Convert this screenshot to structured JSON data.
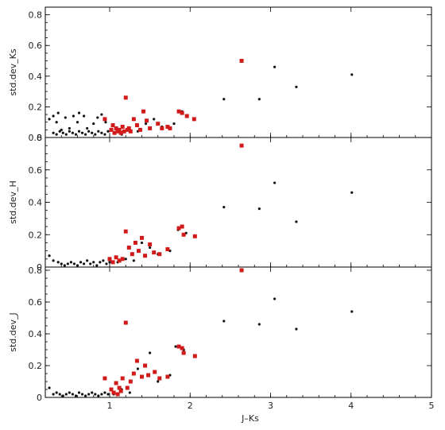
{
  "chart_data": [
    {
      "type": "scatter",
      "title": "",
      "xlabel": "J–Ks",
      "ylabel": "std.dev_Ks",
      "xlim": [
        0.2,
        5.0
      ],
      "ylim": [
        0,
        0.85
      ],
      "xticks": [
        1,
        2,
        3,
        4,
        5
      ],
      "yticks": [
        0,
        0.2,
        0.4,
        0.6,
        0.8
      ],
      "ytick_labels": [
        "0",
        "0.2",
        "0.4",
        "0.6",
        "0.8"
      ],
      "grid": false,
      "series": [
        {
          "color": "#111111",
          "marker": "dot",
          "points": [
            [
              0.25,
              0.12
            ],
            [
              0.3,
              0.14
            ],
            [
              0.34,
              0.1
            ],
            [
              0.36,
              0.16
            ],
            [
              0.4,
              0.05
            ],
            [
              0.45,
              0.13
            ],
            [
              0.5,
              0.06
            ],
            [
              0.55,
              0.14
            ],
            [
              0.6,
              0.1
            ],
            [
              0.62,
              0.16
            ],
            [
              0.68,
              0.14
            ],
            [
              0.72,
              0.06
            ],
            [
              0.8,
              0.09
            ],
            [
              0.85,
              0.13
            ],
            [
              0.9,
              0.15
            ],
            [
              0.95,
              0.1
            ],
            [
              0.3,
              0.03
            ],
            [
              0.34,
              0.02
            ],
            [
              0.38,
              0.04
            ],
            [
              0.42,
              0.03
            ],
            [
              0.46,
              0.02
            ],
            [
              0.5,
              0.04
            ],
            [
              0.54,
              0.03
            ],
            [
              0.58,
              0.02
            ],
            [
              0.62,
              0.04
            ],
            [
              0.66,
              0.03
            ],
            [
              0.7,
              0.02
            ],
            [
              0.74,
              0.04
            ],
            [
              0.78,
              0.03
            ],
            [
              0.82,
              0.02
            ],
            [
              0.86,
              0.04
            ],
            [
              0.9,
              0.03
            ],
            [
              0.94,
              0.02
            ],
            [
              0.98,
              0.04
            ],
            [
              1.05,
              0.03
            ],
            [
              1.15,
              0.02
            ],
            [
              1.25,
              0.05
            ],
            [
              1.35,
              0.04
            ],
            [
              1.45,
              0.09
            ],
            [
              1.55,
              0.12
            ],
            [
              1.65,
              0.07
            ],
            [
              1.8,
              0.09
            ],
            [
              1.9,
              0.17
            ],
            [
              2.42,
              0.25
            ],
            [
              2.86,
              0.25
            ],
            [
              3.05,
              0.46
            ],
            [
              3.32,
              0.33
            ],
            [
              4.01,
              0.41
            ]
          ]
        },
        {
          "color": "#d11a1a",
          "marker": "square",
          "points": [
            [
              0.94,
              0.12
            ],
            [
              1.02,
              0.05
            ],
            [
              1.04,
              0.08
            ],
            [
              1.06,
              0.03
            ],
            [
              1.08,
              0.06
            ],
            [
              1.1,
              0.04
            ],
            [
              1.12,
              0.05
            ],
            [
              1.14,
              0.03
            ],
            [
              1.16,
              0.07
            ],
            [
              1.18,
              0.04
            ],
            [
              1.2,
              0.26
            ],
            [
              1.22,
              0.05
            ],
            [
              1.24,
              0.06
            ],
            [
              1.26,
              0.04
            ],
            [
              1.3,
              0.12
            ],
            [
              1.34,
              0.08
            ],
            [
              1.38,
              0.05
            ],
            [
              1.42,
              0.17
            ],
            [
              1.46,
              0.11
            ],
            [
              1.5,
              0.06
            ],
            [
              1.6,
              0.09
            ],
            [
              1.65,
              0.06
            ],
            [
              1.72,
              0.07
            ],
            [
              1.75,
              0.06
            ],
            [
              1.86,
              0.17
            ],
            [
              1.9,
              0.16
            ],
            [
              1.96,
              0.14
            ],
            [
              2.05,
              0.12
            ],
            [
              2.64,
              0.5
            ]
          ]
        }
      ]
    },
    {
      "type": "scatter",
      "title": "",
      "xlabel": "J–Ks",
      "ylabel": "std.dev_H",
      "xlim": [
        0.2,
        5.0
      ],
      "ylim": [
        0,
        0.8
      ],
      "xticks": [
        1,
        2,
        3,
        4,
        5
      ],
      "yticks": [
        0,
        0.2,
        0.4,
        0.6,
        0.8
      ],
      "ytick_labels": [
        "0",
        "0.2",
        "0.4",
        "0.6",
        "0.8"
      ],
      "grid": false,
      "series": [
        {
          "color": "#111111",
          "marker": "dot",
          "points": [
            [
              0.25,
              0.07
            ],
            [
              0.3,
              0.04
            ],
            [
              0.36,
              0.03
            ],
            [
              0.4,
              0.02
            ],
            [
              0.44,
              0.01
            ],
            [
              0.48,
              0.02
            ],
            [
              0.52,
              0.03
            ],
            [
              0.56,
              0.02
            ],
            [
              0.6,
              0.01
            ],
            [
              0.64,
              0.03
            ],
            [
              0.68,
              0.02
            ],
            [
              0.72,
              0.04
            ],
            [
              0.76,
              0.02
            ],
            [
              0.8,
              0.03
            ],
            [
              0.84,
              0.01
            ],
            [
              0.88,
              0.03
            ],
            [
              0.92,
              0.04
            ],
            [
              0.96,
              0.02
            ],
            [
              1.0,
              0.03
            ],
            [
              1.1,
              0.03
            ],
            [
              1.2,
              0.05
            ],
            [
              1.3,
              0.04
            ],
            [
              1.4,
              0.15
            ],
            [
              1.5,
              0.12
            ],
            [
              1.6,
              0.08
            ],
            [
              1.75,
              0.1
            ],
            [
              1.85,
              0.23
            ],
            [
              1.95,
              0.21
            ],
            [
              2.42,
              0.37
            ],
            [
              2.86,
              0.36
            ],
            [
              3.05,
              0.52
            ],
            [
              3.32,
              0.28
            ],
            [
              4.01,
              0.46
            ]
          ]
        },
        {
          "color": "#d11a1a",
          "marker": "square",
          "points": [
            [
              1.0,
              0.05
            ],
            [
              1.04,
              0.03
            ],
            [
              1.08,
              0.06
            ],
            [
              1.12,
              0.04
            ],
            [
              1.16,
              0.05
            ],
            [
              1.2,
              0.22
            ],
            [
              1.24,
              0.12
            ],
            [
              1.28,
              0.08
            ],
            [
              1.32,
              0.15
            ],
            [
              1.36,
              0.1
            ],
            [
              1.4,
              0.18
            ],
            [
              1.44,
              0.07
            ],
            [
              1.5,
              0.14
            ],
            [
              1.55,
              0.09
            ],
            [
              1.62,
              0.08
            ],
            [
              1.72,
              0.11
            ],
            [
              1.86,
              0.24
            ],
            [
              1.9,
              0.25
            ],
            [
              1.92,
              0.2
            ],
            [
              2.06,
              0.19
            ],
            [
              2.64,
              0.75
            ]
          ]
        }
      ]
    },
    {
      "type": "scatter",
      "title": "",
      "xlabel": "J–Ks",
      "ylabel": "std.dev_J",
      "xlim": [
        0.2,
        5.0
      ],
      "ylim": [
        0,
        0.82
      ],
      "xticks": [
        1,
        2,
        3,
        4,
        5
      ],
      "yticks": [
        0,
        0.2,
        0.4,
        0.6,
        0.8
      ],
      "ytick_labels": [
        "0",
        "0.2",
        "0.4",
        "0.6",
        "0.8"
      ],
      "grid": false,
      "series": [
        {
          "color": "#111111",
          "marker": "dot",
          "points": [
            [
              0.25,
              0.06
            ],
            [
              0.3,
              0.02
            ],
            [
              0.34,
              0.03
            ],
            [
              0.38,
              0.02
            ],
            [
              0.42,
              0.01
            ],
            [
              0.46,
              0.02
            ],
            [
              0.5,
              0.03
            ],
            [
              0.54,
              0.02
            ],
            [
              0.58,
              0.01
            ],
            [
              0.62,
              0.03
            ],
            [
              0.66,
              0.02
            ],
            [
              0.7,
              0.01
            ],
            [
              0.74,
              0.02
            ],
            [
              0.78,
              0.03
            ],
            [
              0.82,
              0.02
            ],
            [
              0.86,
              0.01
            ],
            [
              0.9,
              0.02
            ],
            [
              0.94,
              0.03
            ],
            [
              0.98,
              0.02
            ],
            [
              1.05,
              0.02
            ],
            [
              1.15,
              0.05
            ],
            [
              1.25,
              0.03
            ],
            [
              1.35,
              0.18
            ],
            [
              1.5,
              0.28
            ],
            [
              1.6,
              0.1
            ],
            [
              1.75,
              0.14
            ],
            [
              1.82,
              0.32
            ],
            [
              1.92,
              0.3
            ],
            [
              2.42,
              0.48
            ],
            [
              2.86,
              0.46
            ],
            [
              3.05,
              0.62
            ],
            [
              3.32,
              0.43
            ],
            [
              4.01,
              0.54
            ]
          ]
        },
        {
          "color": "#d11a1a",
          "marker": "square",
          "points": [
            [
              0.94,
              0.12
            ],
            [
              1.02,
              0.05
            ],
            [
              1.05,
              0.03
            ],
            [
              1.08,
              0.09
            ],
            [
              1.1,
              0.02
            ],
            [
              1.12,
              0.06
            ],
            [
              1.14,
              0.04
            ],
            [
              1.16,
              0.12
            ],
            [
              1.2,
              0.47
            ],
            [
              1.22,
              0.06
            ],
            [
              1.26,
              0.1
            ],
            [
              1.3,
              0.15
            ],
            [
              1.34,
              0.23
            ],
            [
              1.4,
              0.13
            ],
            [
              1.44,
              0.2
            ],
            [
              1.48,
              0.14
            ],
            [
              1.56,
              0.16
            ],
            [
              1.62,
              0.12
            ],
            [
              1.72,
              0.13
            ],
            [
              1.86,
              0.32
            ],
            [
              1.9,
              0.31
            ],
            [
              1.92,
              0.28
            ],
            [
              2.06,
              0.26
            ],
            [
              2.64,
              0.8
            ]
          ]
        }
      ]
    }
  ]
}
